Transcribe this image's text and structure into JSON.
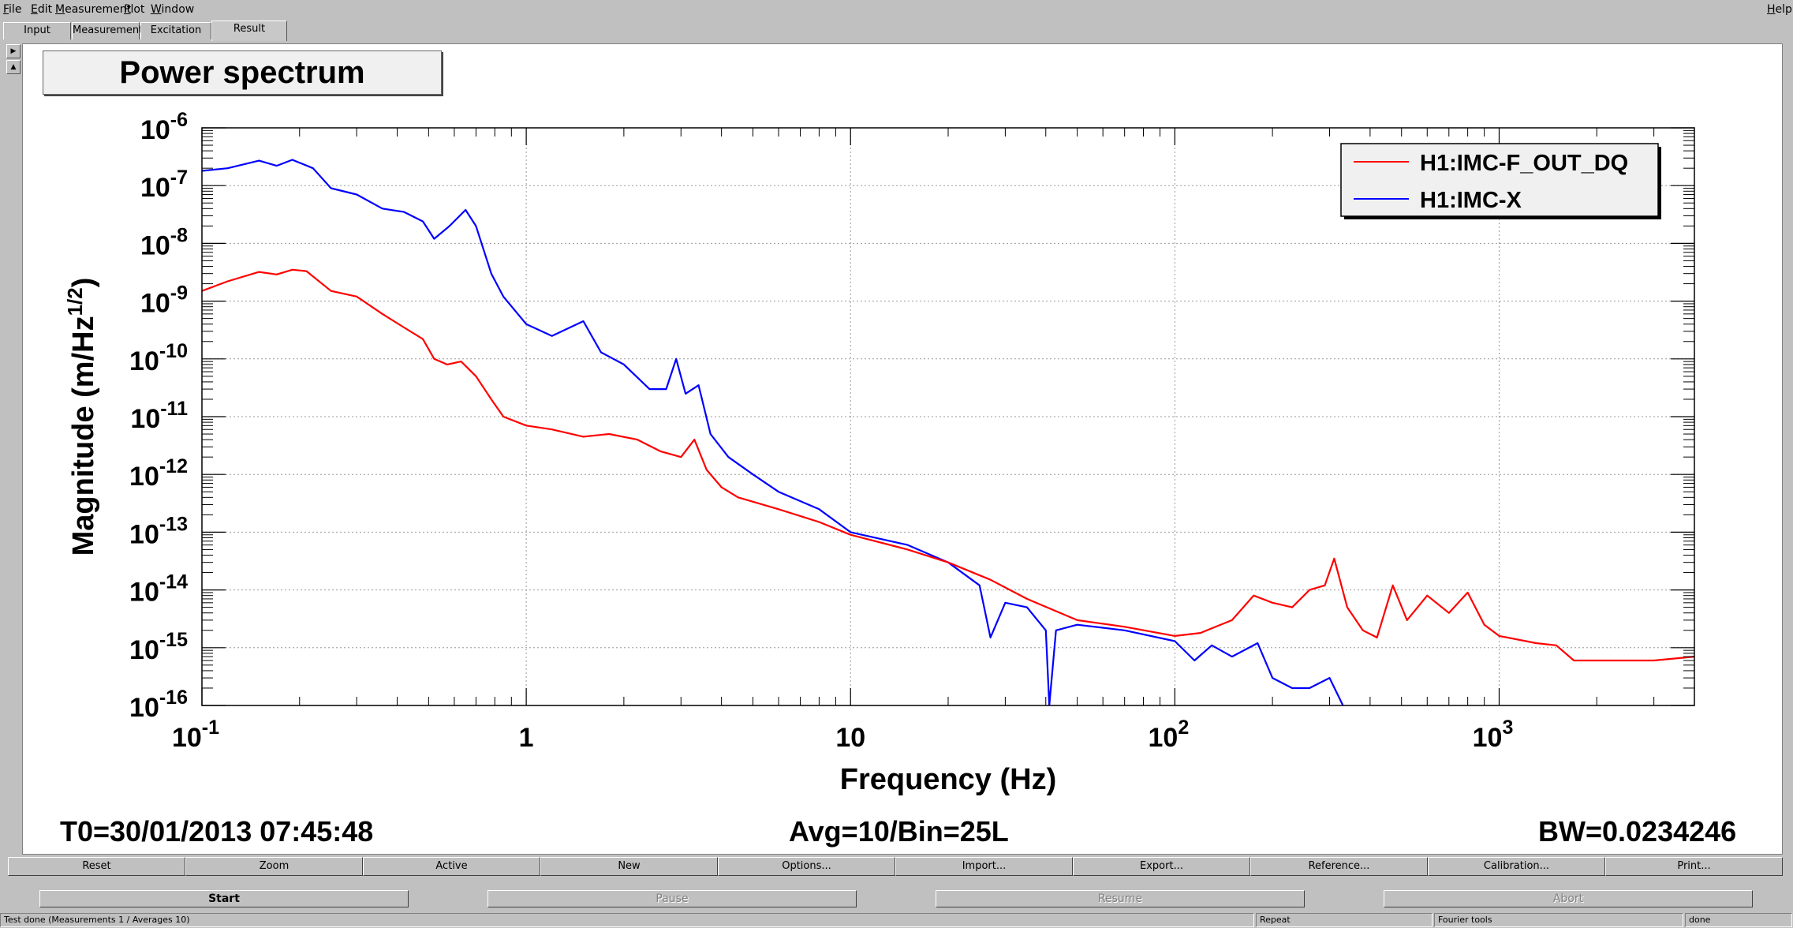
{
  "menu": {
    "items": [
      {
        "underline": "F",
        "rest": "ile"
      },
      {
        "underline": "E",
        "rest": "dit"
      },
      {
        "underline": "M",
        "rest": "easurement"
      },
      {
        "underline": "P",
        "rest": "lot"
      },
      {
        "underline": "W",
        "rest": "indow"
      }
    ],
    "help": {
      "underline": "H",
      "rest": "elp"
    }
  },
  "tabs": [
    "Input",
    "Measurement",
    "Excitation",
    "Result"
  ],
  "active_tab": "Result",
  "side_icons": [
    "triangle-right-icon",
    "triangle-up-icon"
  ],
  "plot_title": "Power spectrum",
  "chart_data": {
    "type": "line",
    "xlabel": "Frequency (Hz)",
    "ylabel": "Magnitude (m/Hz",
    "ylabel_sup": "1/2",
    "ylabel_close": ")",
    "xscale": "log",
    "yscale": "log",
    "xlim": [
      0.1,
      4000
    ],
    "ylim": [
      1e-16,
      1e-06
    ],
    "grid": true,
    "legend_position": "top-right",
    "x_ticks": [
      {
        "base": "10",
        "exp": "-1"
      },
      {
        "base": "1",
        "exp": ""
      },
      {
        "base": "10",
        "exp": ""
      },
      {
        "base": "10",
        "exp": "2"
      },
      {
        "base": "10",
        "exp": "3"
      }
    ],
    "y_ticks": [
      "-6",
      "-7",
      "-8",
      "-9",
      "-10",
      "-11",
      "-12",
      "-13",
      "-14",
      "-15",
      "-16"
    ],
    "y_tick_base": "10",
    "series": [
      {
        "name": "H1:IMC-F_OUT_DQ",
        "color": "#ff0000",
        "points": [
          [
            0.1,
            1.5e-09
          ],
          [
            0.12,
            2.2e-09
          ],
          [
            0.15,
            3.2e-09
          ],
          [
            0.17,
            2.9e-09
          ],
          [
            0.19,
            3.5e-09
          ],
          [
            0.21,
            3.3e-09
          ],
          [
            0.25,
            1.5e-09
          ],
          [
            0.3,
            1.2e-09
          ],
          [
            0.36,
            6e-10
          ],
          [
            0.42,
            3.5e-10
          ],
          [
            0.48,
            2.2e-10
          ],
          [
            0.52,
            1e-10
          ],
          [
            0.57,
            8e-11
          ],
          [
            0.63,
            9e-11
          ],
          [
            0.7,
            5e-11
          ],
          [
            0.78,
            2e-11
          ],
          [
            0.85,
            1e-11
          ],
          [
            1.0,
            7e-12
          ],
          [
            1.2,
            6e-12
          ],
          [
            1.5,
            4.5e-12
          ],
          [
            1.8,
            5e-12
          ],
          [
            2.2,
            4e-12
          ],
          [
            2.6,
            2.5e-12
          ],
          [
            3.0,
            2e-12
          ],
          [
            3.3,
            4e-12
          ],
          [
            3.6,
            1.2e-12
          ],
          [
            4.0,
            6e-13
          ],
          [
            4.5,
            4e-13
          ],
          [
            6,
            2.5e-13
          ],
          [
            8,
            1.5e-13
          ],
          [
            10,
            9e-14
          ],
          [
            15,
            5e-14
          ],
          [
            20,
            3e-14
          ],
          [
            27,
            1.5e-14
          ],
          [
            35,
            7e-15
          ],
          [
            50,
            3e-15
          ],
          [
            70,
            2.3e-15
          ],
          [
            100,
            1.6e-15
          ],
          [
            120,
            1.8e-15
          ],
          [
            150,
            3e-15
          ],
          [
            175,
            8e-15
          ],
          [
            200,
            6e-15
          ],
          [
            230,
            5e-15
          ],
          [
            260,
            1e-14
          ],
          [
            290,
            1.2e-14
          ],
          [
            310,
            3.5e-14
          ],
          [
            340,
            5e-15
          ],
          [
            380,
            2e-15
          ],
          [
            420,
            1.5e-15
          ],
          [
            470,
            1.2e-14
          ],
          [
            520,
            3e-15
          ],
          [
            600,
            8e-15
          ],
          [
            700,
            4e-15
          ],
          [
            800,
            9e-15
          ],
          [
            900,
            2.5e-15
          ],
          [
            1000,
            1.6e-15
          ],
          [
            1300,
            1.2e-15
          ],
          [
            1500,
            1.1e-15
          ],
          [
            1700,
            6e-16
          ],
          [
            2000,
            6e-16
          ],
          [
            3000,
            6e-16
          ],
          [
            4000,
            7e-16
          ]
        ]
      },
      {
        "name": "H1:IMC-X",
        "color": "#0000ff",
        "points": [
          [
            0.1,
            1.8e-07
          ],
          [
            0.12,
            2e-07
          ],
          [
            0.15,
            2.7e-07
          ],
          [
            0.17,
            2.2e-07
          ],
          [
            0.19,
            2.8e-07
          ],
          [
            0.22,
            2e-07
          ],
          [
            0.25,
            9e-08
          ],
          [
            0.3,
            7e-08
          ],
          [
            0.36,
            4e-08
          ],
          [
            0.42,
            3.5e-08
          ],
          [
            0.48,
            2.4e-08
          ],
          [
            0.52,
            1.2e-08
          ],
          [
            0.58,
            2e-08
          ],
          [
            0.65,
            3.8e-08
          ],
          [
            0.7,
            2e-08
          ],
          [
            0.78,
            3e-09
          ],
          [
            0.85,
            1.2e-09
          ],
          [
            1.0,
            4e-10
          ],
          [
            1.2,
            2.5e-10
          ],
          [
            1.5,
            4.5e-10
          ],
          [
            1.7,
            1.3e-10
          ],
          [
            2.0,
            8e-11
          ],
          [
            2.4,
            3e-11
          ],
          [
            2.7,
            3e-11
          ],
          [
            2.9,
            1e-10
          ],
          [
            3.1,
            2.5e-11
          ],
          [
            3.4,
            3.5e-11
          ],
          [
            3.7,
            5e-12
          ],
          [
            4.2,
            2e-12
          ],
          [
            5,
            1e-12
          ],
          [
            6,
            5e-13
          ],
          [
            8,
            2.5e-13
          ],
          [
            10,
            1e-13
          ],
          [
            15,
            6e-14
          ],
          [
            20,
            3e-14
          ],
          [
            25,
            1.2e-14
          ],
          [
            27,
            1.5e-15
          ],
          [
            30,
            6e-15
          ],
          [
            35,
            5e-15
          ],
          [
            40,
            2e-15
          ],
          [
            41,
            1e-16
          ],
          [
            43,
            2e-15
          ],
          [
            50,
            2.5e-15
          ],
          [
            70,
            2e-15
          ],
          [
            100,
            1.3e-15
          ],
          [
            115,
            6e-16
          ],
          [
            130,
            1.1e-15
          ],
          [
            150,
            7e-16
          ],
          [
            180,
            1.2e-15
          ],
          [
            200,
            3e-16
          ],
          [
            230,
            2e-16
          ],
          [
            260,
            2e-16
          ],
          [
            300,
            3e-16
          ],
          [
            330,
            1e-16
          ]
        ]
      }
    ]
  },
  "info": {
    "t0": "T0=30/01/2013 07:45:48",
    "avg": "Avg=10/Bin=25L",
    "bw": "BW=0.0234246"
  },
  "buttons": [
    "Reset",
    "Zoom",
    "Active",
    "New",
    "Options...",
    "Import...",
    "Export...",
    "Reference...",
    "Calibration...",
    "Print..."
  ],
  "controls": [
    {
      "label": "Start",
      "enabled": true
    },
    {
      "label": "Pause",
      "enabled": false
    },
    {
      "label": "Resume",
      "enabled": false
    },
    {
      "label": "Abort",
      "enabled": false
    }
  ],
  "status": [
    "Test done (Measurements 1 / Averages 10)",
    "Repeat",
    "Fourier tools",
    "done"
  ]
}
